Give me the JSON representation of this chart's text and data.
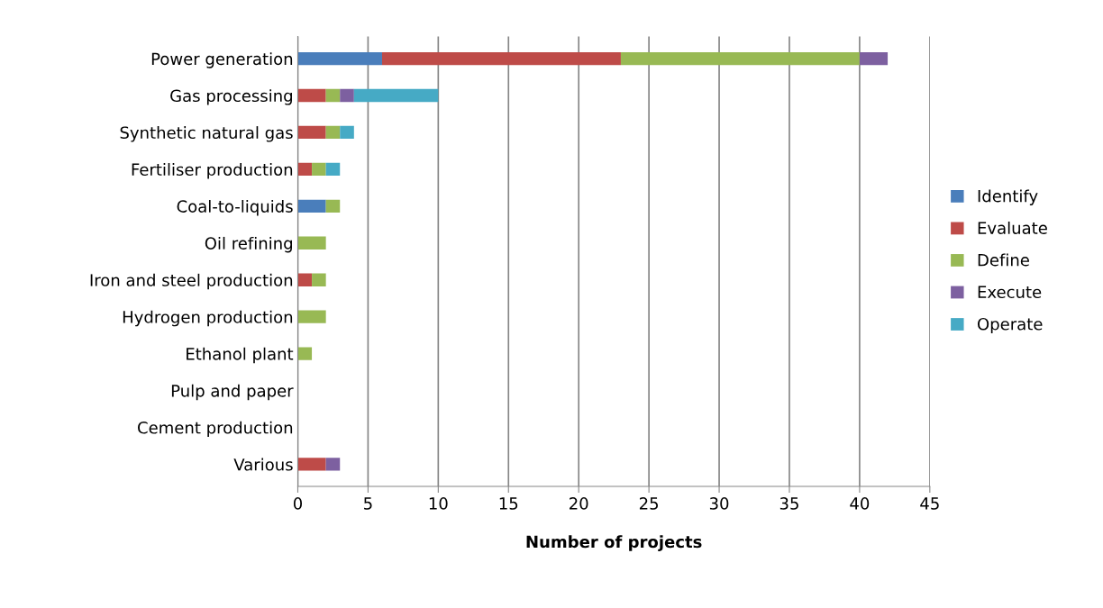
{
  "chart_data": {
    "type": "bar",
    "orientation": "horizontal",
    "stacked": true,
    "xlabel": "Number of projects",
    "categories": [
      "Power generation",
      "Gas processing",
      "Synthetic natural gas",
      "Fertiliser production",
      "Coal-to-liquids",
      "Oil refining",
      "Iron and steel production",
      "Hydrogen production",
      "Ethanol plant",
      "Pulp and paper",
      "Cement production",
      "Various"
    ],
    "series": [
      {
        "name": "Identify",
        "color": "#4a7ebb",
        "values": [
          6,
          0,
          0,
          0,
          2,
          0,
          0,
          0,
          0,
          0,
          0,
          0
        ]
      },
      {
        "name": "Evaluate",
        "color": "#be4b48",
        "values": [
          17,
          2,
          2,
          1,
          0,
          0,
          1,
          0,
          0,
          0,
          0,
          2
        ]
      },
      {
        "name": "Define",
        "color": "#98b954",
        "values": [
          17,
          1,
          1,
          1,
          1,
          2,
          1,
          2,
          1,
          0,
          0,
          0
        ]
      },
      {
        "name": "Execute",
        "color": "#7d60a0",
        "values": [
          2,
          1,
          0,
          0,
          0,
          0,
          0,
          0,
          0,
          0,
          0,
          1
        ]
      },
      {
        "name": "Operate",
        "color": "#46aac5",
        "values": [
          0,
          6,
          1,
          1,
          0,
          0,
          0,
          0,
          0,
          0,
          0,
          0
        ]
      }
    ],
    "xlim": [
      0,
      45
    ],
    "xticks": [
      0,
      5,
      10,
      15,
      20,
      25,
      30,
      35,
      40,
      45
    ],
    "grid": "x",
    "legend": "right"
  }
}
